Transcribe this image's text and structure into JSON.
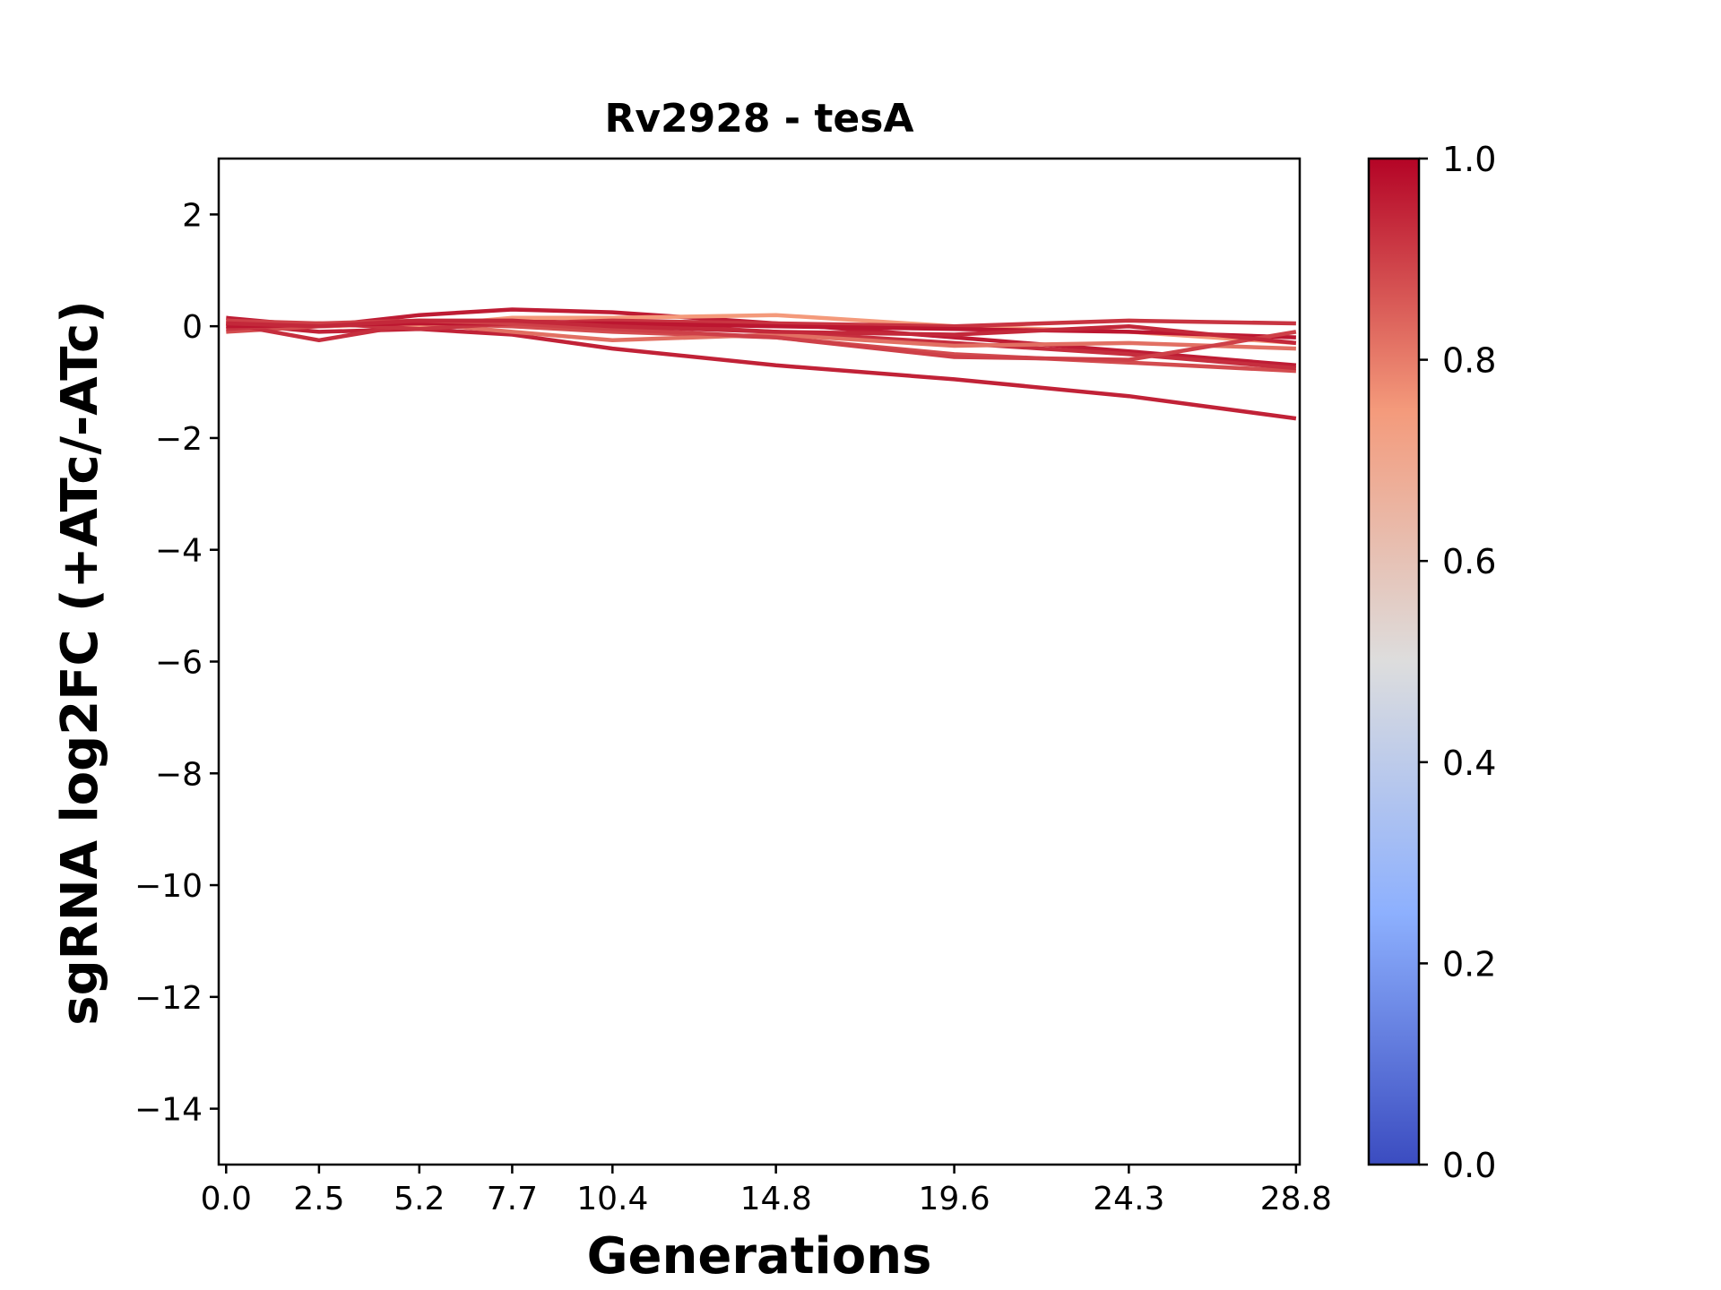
{
  "chart_data": {
    "type": "line",
    "title": "Rv2928 - tesA",
    "xlabel": "Generations",
    "ylabel": "sgRNA log2FC (+ATc/-ATc)",
    "x": [
      0.0,
      2.5,
      5.2,
      7.7,
      10.4,
      14.8,
      19.6,
      24.3,
      28.8
    ],
    "x_tick_labels": [
      "0.0",
      "2.5",
      "5.2",
      "7.7",
      "10.4",
      "14.8",
      "19.6",
      "24.3",
      "28.8"
    ],
    "xlim": [
      -0.2,
      28.9
    ],
    "ylim": [
      -15,
      3
    ],
    "y_ticks": [
      2,
      0,
      -2,
      -4,
      -6,
      -8,
      -10,
      -12,
      -14
    ],
    "y_tick_labels": [
      "2",
      "0",
      "−2",
      "−4",
      "−6",
      "−8",
      "−10",
      "−12",
      "−14"
    ],
    "grid": false,
    "colorbar": {
      "colormap": "coolwarm",
      "range": [
        0.0,
        1.0
      ],
      "ticks": [
        0.0,
        0.2,
        0.4,
        0.6,
        0.8,
        1.0
      ],
      "tick_labels": [
        "0.0",
        "0.2",
        "0.4",
        "0.6",
        "0.8",
        "1.0"
      ],
      "stops": [
        {
          "value": 0.0,
          "color": "#3b4cc0"
        },
        {
          "value": 0.25,
          "color": "#8db0fe"
        },
        {
          "value": 0.5,
          "color": "#dddddd"
        },
        {
          "value": 0.75,
          "color": "#f49a7b"
        },
        {
          "value": 1.0,
          "color": "#b40426"
        }
      ]
    },
    "series": [
      {
        "color_value": 0.95,
        "values": [
          0.05,
          -0.1,
          -0.05,
          -0.15,
          -0.4,
          -0.7,
          -0.95,
          -1.25,
          -1.65
        ]
      },
      {
        "color_value": 0.96,
        "values": [
          0.15,
          0.0,
          0.2,
          0.3,
          0.25,
          0.05,
          -0.2,
          -0.45,
          -0.7
        ]
      },
      {
        "color_value": 0.88,
        "values": [
          -0.1,
          0.0,
          0.05,
          0.0,
          -0.1,
          -0.2,
          -0.5,
          -0.65,
          -0.8
        ]
      },
      {
        "color_value": 0.93,
        "values": [
          0.05,
          -0.25,
          0.05,
          0.1,
          0.05,
          -0.1,
          -0.3,
          -0.5,
          -0.75
        ]
      },
      {
        "color_value": 0.75,
        "values": [
          0.0,
          0.05,
          0.0,
          0.15,
          0.15,
          0.2,
          0.0,
          -0.1,
          -0.3
        ]
      },
      {
        "color_value": 0.82,
        "values": [
          0.1,
          0.0,
          0.05,
          -0.1,
          -0.25,
          -0.15,
          -0.35,
          -0.3,
          -0.4
        ]
      },
      {
        "color_value": 0.92,
        "values": [
          -0.05,
          0.05,
          -0.05,
          0.05,
          0.1,
          0.05,
          0.0,
          0.1,
          0.05
        ]
      },
      {
        "color_value": 0.97,
        "values": [
          0.0,
          0.02,
          0.05,
          0.05,
          0.05,
          0.0,
          -0.05,
          -0.1,
          -0.2
        ]
      },
      {
        "color_value": 0.9,
        "values": [
          0.1,
          0.05,
          0.1,
          0.05,
          -0.05,
          -0.2,
          -0.55,
          -0.6,
          -0.1
        ]
      },
      {
        "color_value": 0.94,
        "values": [
          0.05,
          0.0,
          0.1,
          0.1,
          0.0,
          -0.1,
          -0.15,
          0.0,
          -0.3
        ]
      }
    ]
  }
}
